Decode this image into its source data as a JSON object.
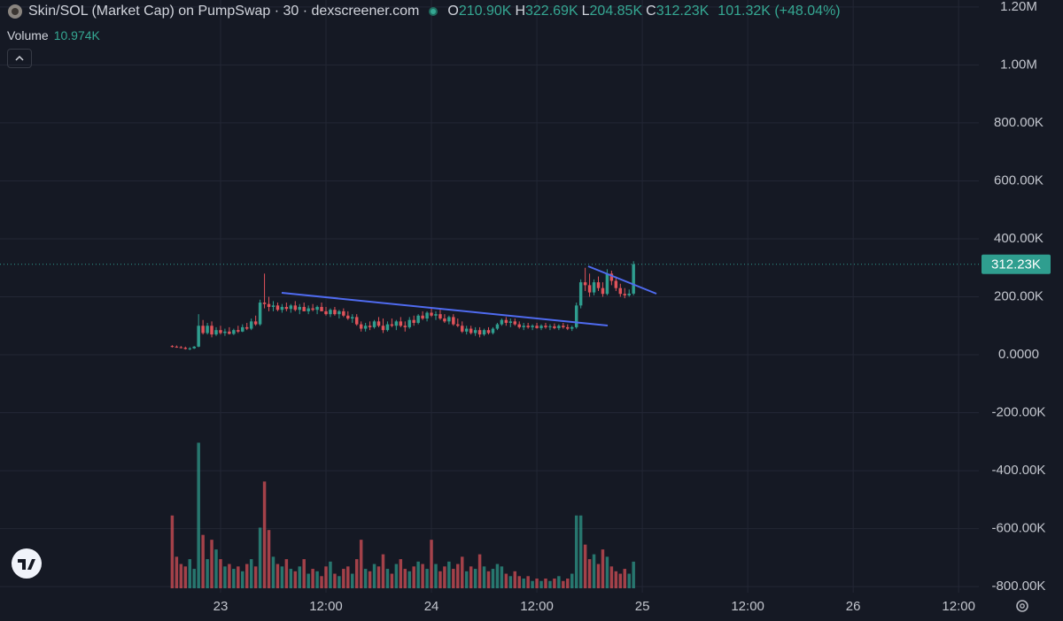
{
  "chart_data": {
    "type": "candlestick",
    "title": "Skin/SOL (Market Cap) on PumpSwap · 30 · dexscreener.com",
    "legend": [
      {
        "label": "O",
        "value": "210.90K"
      },
      {
        "label": "H",
        "value": "322.69K"
      },
      {
        "label": "L",
        "value": "204.85K"
      },
      {
        "label": "C",
        "value": "312.23K"
      }
    ],
    "change": "101.32K (+48.04%)",
    "volume_legend": {
      "label": "Volume",
      "value": "10.974K"
    },
    "last_price_label": "312.23K",
    "up_color": "#2f9e8f",
    "down_color": "#e0535a",
    "grid": true,
    "xlim": [
      -25.1,
      86.3
    ],
    "ylim": [
      -821000,
      1224000
    ],
    "volume_lim": [
      0,
      66000
    ],
    "xticks": [
      {
        "value": 0,
        "label": "23"
      },
      {
        "value": 12,
        "label": "12:00"
      },
      {
        "value": 24,
        "label": "24"
      },
      {
        "value": 36,
        "label": "12:00"
      },
      {
        "value": 48,
        "label": "25"
      },
      {
        "value": 60,
        "label": "12:00"
      },
      {
        "value": 72,
        "label": "26"
      },
      {
        "value": 84,
        "label": "12:00"
      }
    ],
    "yticks": [
      {
        "value": 1200000,
        "label": "1.20M"
      },
      {
        "value": 1000000,
        "label": "1.00M"
      },
      {
        "value": 800000,
        "label": "800.00K"
      },
      {
        "value": 600000,
        "label": "600.00K"
      },
      {
        "value": 400000,
        "label": "400.00K"
      },
      {
        "value": 200000,
        "label": "200.00K"
      },
      {
        "value": 0,
        "label": "0.0000"
      },
      {
        "value": -200000,
        "label": "-200.00K"
      },
      {
        "value": -400000,
        "label": "-400.00K"
      },
      {
        "value": -600000,
        "label": "-600.00K"
      },
      {
        "value": -800000,
        "label": "-800.00K"
      }
    ],
    "x": [
      -5.5,
      -5,
      -4.5,
      -4,
      -3.5,
      -3,
      -2.5,
      -2,
      -1.5,
      -1,
      -0.5,
      0,
      0.5,
      1,
      1.5,
      2,
      2.5,
      3,
      3.5,
      4,
      4.5,
      5,
      5.5,
      6,
      6.5,
      7,
      7.5,
      8,
      8.5,
      9,
      9.5,
      10,
      10.5,
      11,
      11.5,
      12,
      12.5,
      13,
      13.5,
      14,
      14.5,
      15,
      15.5,
      16,
      16.5,
      17,
      17.5,
      18,
      18.5,
      19,
      19.5,
      20,
      20.5,
      21,
      21.5,
      22,
      22.5,
      23,
      23.5,
      24,
      24.5,
      25,
      25.5,
      26,
      26.5,
      27,
      27.5,
      28,
      28.5,
      29,
      29.5,
      30,
      30.5,
      31,
      31.5,
      32,
      32.5,
      33,
      33.5,
      34,
      34.5,
      35,
      35.5,
      36,
      36.5,
      37,
      37.5,
      38,
      38.5,
      39,
      39.5,
      40,
      40.5,
      41,
      41.5,
      42,
      42.5,
      43,
      43.5,
      44,
      44.5,
      45,
      45.5,
      46,
      46.5,
      47
    ],
    "ohlc": [
      [
        30000,
        33000,
        25000,
        28000
      ],
      [
        28000,
        32000,
        24000,
        26000
      ],
      [
        26000,
        30000,
        22000,
        24000
      ],
      [
        24000,
        28000,
        18000,
        20000
      ],
      [
        20000,
        26000,
        16000,
        22000
      ],
      [
        22000,
        30000,
        20000,
        28000
      ],
      [
        28000,
        140000,
        26000,
        100000
      ],
      [
        100000,
        120000,
        70000,
        75000
      ],
      [
        75000,
        110000,
        70000,
        100000
      ],
      [
        100000,
        115000,
        60000,
        70000
      ],
      [
        70000,
        95000,
        65000,
        85000
      ],
      [
        85000,
        100000,
        70000,
        75000
      ],
      [
        75000,
        90000,
        65000,
        80000
      ],
      [
        80000,
        95000,
        70000,
        72000
      ],
      [
        72000,
        90000,
        68000,
        85000
      ],
      [
        85000,
        100000,
        75000,
        80000
      ],
      [
        80000,
        105000,
        78000,
        95000
      ],
      [
        95000,
        110000,
        85000,
        90000
      ],
      [
        90000,
        125000,
        85000,
        115000
      ],
      [
        115000,
        135000,
        100000,
        105000
      ],
      [
        105000,
        190000,
        100000,
        180000
      ],
      [
        180000,
        280000,
        160000,
        175000
      ],
      [
        175000,
        200000,
        150000,
        165000
      ],
      [
        165000,
        185000,
        150000,
        170000
      ],
      [
        170000,
        180000,
        150000,
        155000
      ],
      [
        155000,
        175000,
        145000,
        165000
      ],
      [
        165000,
        180000,
        150000,
        158000
      ],
      [
        158000,
        175000,
        145000,
        170000
      ],
      [
        170000,
        185000,
        150000,
        155000
      ],
      [
        155000,
        175000,
        140000,
        165000
      ],
      [
        165000,
        180000,
        150000,
        150000
      ],
      [
        150000,
        170000,
        140000,
        160000
      ],
      [
        160000,
        175000,
        150000,
        155000
      ],
      [
        155000,
        170000,
        140000,
        165000
      ],
      [
        165000,
        180000,
        150000,
        150000
      ],
      [
        150000,
        165000,
        135000,
        140000
      ],
      [
        140000,
        160000,
        130000,
        155000
      ],
      [
        155000,
        165000,
        135000,
        140000
      ],
      [
        140000,
        155000,
        125000,
        150000
      ],
      [
        150000,
        160000,
        130000,
        135000
      ],
      [
        135000,
        150000,
        120000,
        125000
      ],
      [
        125000,
        140000,
        110000,
        130000
      ],
      [
        130000,
        140000,
        100000,
        105000
      ],
      [
        105000,
        115000,
        80000,
        90000
      ],
      [
        90000,
        110000,
        80000,
        100000
      ],
      [
        100000,
        115000,
        85000,
        95000
      ],
      [
        95000,
        120000,
        90000,
        115000
      ],
      [
        115000,
        130000,
        95000,
        100000
      ],
      [
        100000,
        125000,
        75000,
        85000
      ],
      [
        85000,
        115000,
        80000,
        105000
      ],
      [
        105000,
        125000,
        95000,
        100000
      ],
      [
        100000,
        120000,
        85000,
        115000
      ],
      [
        115000,
        130000,
        95000,
        100000
      ],
      [
        100000,
        115000,
        80000,
        95000
      ],
      [
        95000,
        130000,
        90000,
        120000
      ],
      [
        120000,
        135000,
        100000,
        110000
      ],
      [
        110000,
        140000,
        105000,
        135000
      ],
      [
        135000,
        150000,
        120000,
        125000
      ],
      [
        125000,
        150000,
        115000,
        145000
      ],
      [
        145000,
        160000,
        130000,
        135000
      ],
      [
        135000,
        150000,
        120000,
        140000
      ],
      [
        140000,
        155000,
        120000,
        125000
      ],
      [
        125000,
        140000,
        110000,
        115000
      ],
      [
        115000,
        135000,
        105000,
        130000
      ],
      [
        130000,
        140000,
        100000,
        105000
      ],
      [
        105000,
        125000,
        95000,
        100000
      ],
      [
        100000,
        115000,
        75000,
        80000
      ],
      [
        80000,
        100000,
        70000,
        90000
      ],
      [
        90000,
        100000,
        70000,
        75000
      ],
      [
        75000,
        95000,
        65000,
        85000
      ],
      [
        85000,
        95000,
        60000,
        70000
      ],
      [
        70000,
        90000,
        65000,
        85000
      ],
      [
        85000,
        95000,
        70000,
        75000
      ],
      [
        75000,
        95000,
        70000,
        90000
      ],
      [
        90000,
        110000,
        85000,
        105000
      ],
      [
        105000,
        125000,
        100000,
        120000
      ],
      [
        120000,
        130000,
        100000,
        110000
      ],
      [
        110000,
        125000,
        95000,
        115000
      ],
      [
        115000,
        125000,
        100000,
        105000
      ],
      [
        105000,
        115000,
        90000,
        95000
      ],
      [
        95000,
        110000,
        85000,
        100000
      ],
      [
        100000,
        110000,
        90000,
        95000
      ],
      [
        95000,
        105000,
        85000,
        100000
      ],
      [
        100000,
        110000,
        90000,
        92000
      ],
      [
        92000,
        105000,
        85000,
        100000
      ],
      [
        100000,
        110000,
        90000,
        95000
      ],
      [
        95000,
        105000,
        85000,
        98000
      ],
      [
        98000,
        108000,
        88000,
        92000
      ],
      [
        92000,
        105000,
        85000,
        100000
      ],
      [
        100000,
        110000,
        90000,
        95000
      ],
      [
        95000,
        105000,
        85000,
        90000
      ],
      [
        90000,
        100000,
        82000,
        95000
      ],
      [
        95000,
        180000,
        90000,
        170000
      ],
      [
        170000,
        260000,
        160000,
        250000
      ],
      [
        250000,
        300000,
        220000,
        240000
      ],
      [
        240000,
        280000,
        200000,
        215000
      ],
      [
        215000,
        260000,
        205000,
        250000
      ],
      [
        250000,
        270000,
        220000,
        230000
      ],
      [
        230000,
        250000,
        200000,
        210000
      ],
      [
        210000,
        295000,
        205000,
        280000
      ],
      [
        280000,
        290000,
        240000,
        255000
      ],
      [
        255000,
        270000,
        220000,
        230000
      ],
      [
        230000,
        245000,
        200000,
        210000
      ],
      [
        210000,
        230000,
        195000,
        205000
      ],
      [
        205000,
        225000,
        200000,
        210900
      ],
      [
        210900,
        322690,
        204850,
        312230
      ]
    ],
    "volume": [
      30000,
      13000,
      10000,
      9000,
      12000,
      8000,
      60000,
      22000,
      12000,
      20000,
      16000,
      12000,
      9000,
      10000,
      8000,
      9000,
      7000,
      10000,
      12000,
      9000,
      25000,
      44000,
      24000,
      13000,
      10000,
      9000,
      12000,
      8000,
      7000,
      9000,
      12000,
      6000,
      8000,
      7000,
      5000,
      9000,
      11000,
      6000,
      5000,
      8000,
      9000,
      6000,
      12000,
      20000,
      8000,
      7000,
      10000,
      9000,
      14000,
      8000,
      6000,
      10000,
      12000,
      8000,
      7000,
      9000,
      11000,
      10000,
      8000,
      20000,
      10000,
      7000,
      9000,
      11000,
      8000,
      10000,
      13000,
      7000,
      9000,
      8000,
      14000,
      9000,
      7000,
      8000,
      10000,
      9000,
      6000,
      5000,
      7000,
      5000,
      4000,
      5000,
      3000,
      4000,
      3000,
      4000,
      3000,
      4000,
      5000,
      3000,
      4000,
      6000,
      30000,
      30000,
      18000,
      12000,
      14000,
      10000,
      16000,
      13000,
      9000,
      7000,
      6000,
      8000,
      6000,
      10974
    ]
  }
}
